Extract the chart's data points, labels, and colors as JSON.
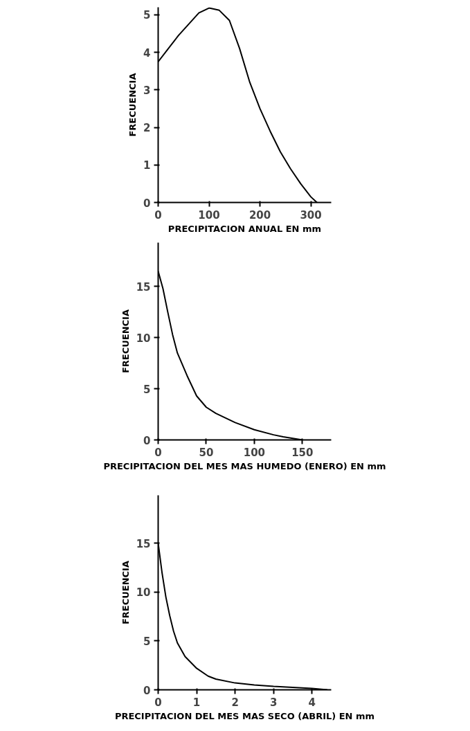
{
  "chart_data": [
    {
      "type": "line",
      "xlabel": "PRECIPITACION ANUAL EN mm",
      "ylabel": "FRECUENCIA",
      "x": [
        0,
        20,
        40,
        60,
        80,
        100,
        120,
        140,
        160,
        180,
        200,
        220,
        240,
        260,
        280,
        300,
        312
      ],
      "series": [
        {
          "color": "#000000",
          "values": [
            3.75,
            4.1,
            4.45,
            4.75,
            5.05,
            5.18,
            5.12,
            4.85,
            4.1,
            3.2,
            2.5,
            1.9,
            1.35,
            0.9,
            0.5,
            0.15,
            0
          ]
        }
      ],
      "xlim": [
        0,
        340
      ],
      "ylim": [
        0,
        5.2
      ],
      "xticks": [
        0,
        100,
        200,
        300
      ],
      "yticks": [
        0,
        1,
        2,
        3,
        4,
        5
      ],
      "grid": false
    },
    {
      "type": "line",
      "xlabel": "PRECIPITACION DEL MES MAS HUMEDO (ENERO) EN mm",
      "ylabel": "FRECUENCIA",
      "x": [
        0,
        5,
        10,
        15,
        20,
        30,
        40,
        50,
        60,
        80,
        100,
        120,
        130,
        150
      ],
      "series": [
        {
          "color": "#000000",
          "values": [
            16.5,
            14.8,
            12.5,
            10.3,
            8.5,
            6.3,
            4.3,
            3.2,
            2.6,
            1.7,
            1.0,
            0.5,
            0.3,
            0
          ]
        }
      ],
      "xlim": [
        0,
        180
      ],
      "ylim": [
        0,
        19.3
      ],
      "xticks": [
        0,
        50,
        100,
        150
      ],
      "yticks": [
        0,
        5,
        10,
        15
      ],
      "grid": false
    },
    {
      "type": "line",
      "xlabel": "PRECIPITACION DEL MES MAS SECO (ABRIL) EN mm",
      "ylabel": "FRECUENCIA",
      "x": [
        0,
        0.1,
        0.2,
        0.3,
        0.4,
        0.5,
        0.7,
        1,
        1.3,
        1.5,
        2,
        2.5,
        3,
        3.5,
        4,
        4.4
      ],
      "series": [
        {
          "color": "#000000",
          "values": [
            15,
            12,
            9.5,
            7.6,
            6,
            4.8,
            3.4,
            2.2,
            1.4,
            1.1,
            0.7,
            0.5,
            0.35,
            0.25,
            0.15,
            0
          ]
        }
      ],
      "xlim": [
        0,
        4.5
      ],
      "ylim": [
        0,
        19.9
      ],
      "xticks": [
        0,
        1,
        2,
        3,
        4
      ],
      "yticks": [
        0,
        5,
        10,
        15
      ],
      "grid": false
    }
  ]
}
